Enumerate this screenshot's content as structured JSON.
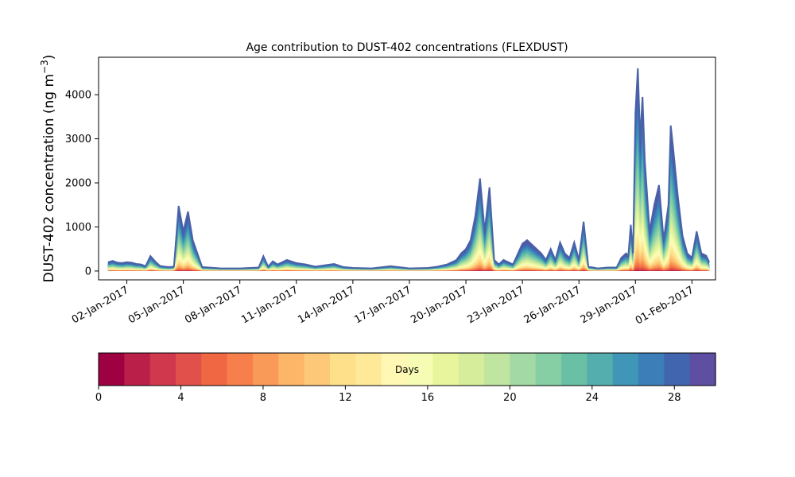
{
  "chart_data": {
    "type": "area",
    "title": "Age contribution to DUST-402 concentrations (FLEXDUST)",
    "ylabel_main": "DUST-402 concentration (ng m",
    "ylabel_sup": "−3",
    "ylabel_close": ")",
    "xlabel": "",
    "ylim": [
      -200,
      4850
    ],
    "xlim": [
      "2016-12-31 12:00",
      "2017-02-02 06:00"
    ],
    "grid": false,
    "yticks": [
      0,
      1000,
      2000,
      3000,
      4000
    ],
    "ytick_labels": [
      "0",
      "1000",
      "2000",
      "3000",
      "4000"
    ],
    "xtick_dates": [
      "2017-01-02",
      "2017-01-05",
      "2017-01-08",
      "2017-01-11",
      "2017-01-14",
      "2017-01-17",
      "2017-01-20",
      "2017-01-23",
      "2017-01-26",
      "2017-01-29",
      "2017-02-01"
    ],
    "xtick_labels": [
      "02-Jan-2017",
      "05-Jan-2017",
      "08-Jan-2017",
      "11-Jan-2017",
      "14-Jan-2017",
      "17-Jan-2017",
      "20-Jan-2017",
      "23-Jan-2017",
      "26-Jan-2017",
      "29-Jan-2017",
      "01-Feb-2017"
    ],
    "total_series": {
      "x": [
        "2017-01-01 00:00",
        "2017-01-01 06:00",
        "2017-01-01 12:00",
        "2017-01-01 18:00",
        "2017-01-02 00:00",
        "2017-01-02 06:00",
        "2017-01-02 12:00",
        "2017-01-02 18:00",
        "2017-01-03 00:00",
        "2017-01-03 06:00",
        "2017-01-03 12:00",
        "2017-01-03 18:00",
        "2017-01-04 00:00",
        "2017-01-04 06:00",
        "2017-01-04 12:00",
        "2017-01-04 18:00",
        "2017-01-05 00:00",
        "2017-01-05 06:00",
        "2017-01-05 12:00",
        "2017-01-06 00:00",
        "2017-01-07 00:00",
        "2017-01-08 00:00",
        "2017-01-09 00:00",
        "2017-01-09 06:00",
        "2017-01-09 12:00",
        "2017-01-09 18:00",
        "2017-01-10 00:00",
        "2017-01-10 12:00",
        "2017-01-11 00:00",
        "2017-01-11 12:00",
        "2017-01-12 00:00",
        "2017-01-13 00:00",
        "2017-01-13 12:00",
        "2017-01-14 00:00",
        "2017-01-15 00:00",
        "2017-01-16 00:00",
        "2017-01-17 00:00",
        "2017-01-18 00:00",
        "2017-01-18 12:00",
        "2017-01-19 00:00",
        "2017-01-19 12:00",
        "2017-01-19 18:00",
        "2017-01-20 00:00",
        "2017-01-20 06:00",
        "2017-01-20 12:00",
        "2017-01-20 18:00",
        "2017-01-21 00:00",
        "2017-01-21 06:00",
        "2017-01-21 12:00",
        "2017-01-21 18:00",
        "2017-01-22 00:00",
        "2017-01-22 12:00",
        "2017-01-23 00:00",
        "2017-01-23 06:00",
        "2017-01-23 12:00",
        "2017-01-24 00:00",
        "2017-01-24 06:00",
        "2017-01-24 12:00",
        "2017-01-24 18:00",
        "2017-01-25 00:00",
        "2017-01-25 06:00",
        "2017-01-25 12:00",
        "2017-01-25 18:00",
        "2017-01-26 00:00",
        "2017-01-26 06:00",
        "2017-01-26 12:00",
        "2017-01-27 00:00",
        "2017-01-27 12:00",
        "2017-01-28 00:00",
        "2017-01-28 06:00",
        "2017-01-28 12:00",
        "2017-01-28 15:00",
        "2017-01-28 18:00",
        "2017-01-28 21:00",
        "2017-01-29 00:00",
        "2017-01-29 03:00",
        "2017-01-29 06:00",
        "2017-01-29 09:00",
        "2017-01-29 12:00",
        "2017-01-29 18:00",
        "2017-01-30 00:00",
        "2017-01-30 06:00",
        "2017-01-30 12:00",
        "2017-01-30 18:00",
        "2017-01-30 21:00",
        "2017-01-31 00:00",
        "2017-01-31 06:00",
        "2017-01-31 12:00",
        "2017-01-31 18:00",
        "2017-02-01 00:00",
        "2017-02-01 06:00",
        "2017-02-01 12:00",
        "2017-02-01 18:00",
        "2017-02-01 22:00"
      ],
      "y": [
        200,
        230,
        190,
        180,
        200,
        190,
        160,
        150,
        110,
        340,
        220,
        120,
        100,
        90,
        100,
        1480,
        900,
        1350,
        700,
        90,
        60,
        60,
        80,
        340,
        100,
        220,
        150,
        250,
        180,
        150,
        100,
        160,
        90,
        70,
        60,
        110,
        60,
        70,
        100,
        150,
        250,
        400,
        500,
        700,
        1250,
        2100,
        900,
        1900,
        250,
        150,
        250,
        150,
        620,
        700,
        600,
        400,
        250,
        500,
        250,
        650,
        400,
        300,
        650,
        250,
        1120,
        100,
        60,
        80,
        80,
        300,
        400,
        350,
        1050,
        400,
        3600,
        4600,
        3000,
        3950,
        2500,
        900,
        1500,
        1950,
        700,
        1500,
        3300,
        2800,
        1700,
        800,
        400,
        300,
        900,
        400,
        350,
        200
      ],
      "color": "#4a62a8"
    },
    "colorbar": {
      "label": "Days",
      "range": [
        0,
        30
      ],
      "ticks": [
        0,
        4,
        8,
        12,
        16,
        20,
        24,
        28
      ],
      "tick_labels": [
        "0",
        "4",
        "8",
        "12",
        "16",
        "20",
        "24",
        "28"
      ],
      "colors": [
        "#9e0142",
        "#b91f48",
        "#d0384e",
        "#e1504a",
        "#f06744",
        "#f67f4b",
        "#f99a58",
        "#fdb567",
        "#fdc978",
        "#fee08b",
        "#fee999",
        "#fff8b4",
        "#f7fcb4",
        "#e9f59d",
        "#d6ee9b",
        "#bfe5a0",
        "#a2d9a4",
        "#86cfa5",
        "#6ac0a5",
        "#53aead",
        "#3f96b7",
        "#3b7eb8",
        "#4265b0",
        "#5e4fa2"
      ]
    }
  }
}
